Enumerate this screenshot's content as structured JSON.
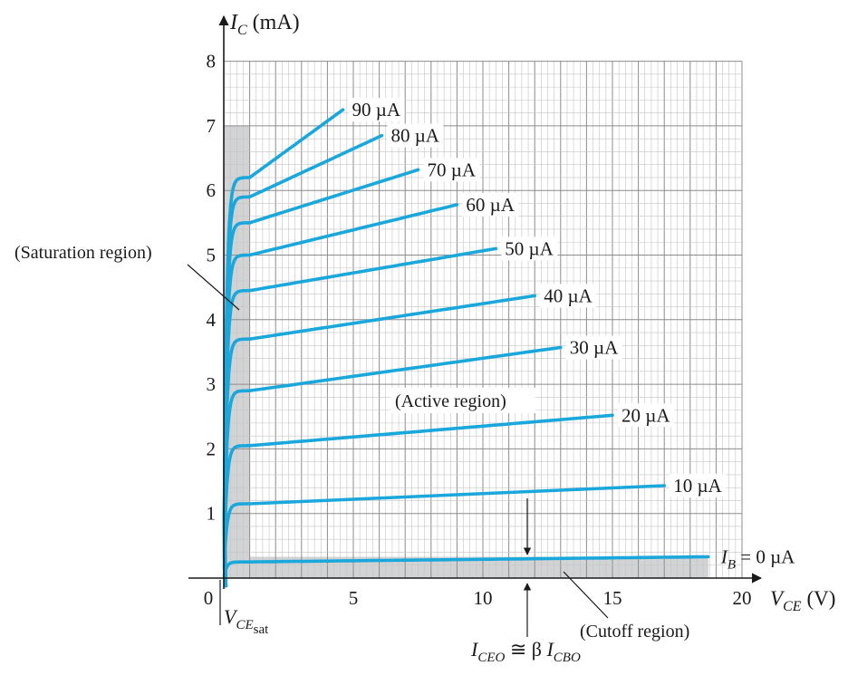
{
  "chart_data": {
    "type": "line",
    "title": "",
    "xlabel": {
      "var": "V",
      "sub": "CE",
      "unit": "(V)"
    },
    "ylabel": {
      "var": "I",
      "sub": "C",
      "unit": "(mA)"
    },
    "xlim": [
      0,
      20
    ],
    "ylim": [
      0,
      8
    ],
    "x_ticks": [
      5,
      10,
      15,
      20
    ],
    "y_ticks": [
      1,
      2,
      3,
      4,
      5,
      6,
      7,
      8
    ],
    "origin_label": "0",
    "grid": true,
    "series": [
      {
        "name": "I_B = 0 µA",
        "label": "",
        "label_parts": {
          "var": "I",
          "sub": "B",
          "rest": " = 0 µA"
        },
        "knee_y": 0.25,
        "end_x": 18.7,
        "end_y": 0.33
      },
      {
        "name": "10 µA",
        "label": "10 µA",
        "knee_y": 1.15,
        "end_x": 17.0,
        "end_y": 1.43
      },
      {
        "name": "20 µA",
        "label": "20 µA",
        "knee_y": 2.05,
        "end_x": 15.0,
        "end_y": 2.52
      },
      {
        "name": "30 µA",
        "label": "30 µA",
        "knee_y": 2.9,
        "end_x": 13.0,
        "end_y": 3.57
      },
      {
        "name": "40 µA",
        "label": "40 µA",
        "knee_y": 3.7,
        "end_x": 12.0,
        "end_y": 4.37
      },
      {
        "name": "50 µA",
        "label": "50 µA",
        "knee_y": 4.45,
        "end_x": 10.5,
        "end_y": 5.1
      },
      {
        "name": "60 µA",
        "label": "60 µA",
        "knee_y": 5.0,
        "end_x": 9.0,
        "end_y": 5.78
      },
      {
        "name": "70 µA",
        "label": "70 µA",
        "knee_y": 5.5,
        "end_x": 7.5,
        "end_y": 6.32
      },
      {
        "name": "80 µA",
        "label": "80 µA",
        "knee_y": 5.9,
        "end_x": 6.1,
        "end_y": 6.85
      },
      {
        "name": "90 µA",
        "label": "90 µA",
        "knee_y": 6.2,
        "end_x": 4.6,
        "end_y": 7.25
      }
    ],
    "regions": {
      "saturation": {
        "label": "(Saturation region)",
        "x_max": 1.0,
        "y_max": 7.0
      },
      "active": {
        "label": "(Active region)"
      },
      "cutoff": {
        "label": "(Cutoff region)",
        "x_max": 18.7,
        "y_max": 0.33
      }
    },
    "annotations": {
      "vce_sat": {
        "var": "V",
        "sub": "CE",
        "subsub": "sat"
      },
      "iceo": {
        "lhs": "I",
        "lhs_sub": "CEO",
        "op": " ≅ β ",
        "rhs": "I",
        "rhs_sub": "CBO"
      }
    },
    "colors": {
      "curve": "#1aa7dc",
      "grid_major": "#8c8c8c",
      "grid_minor": "#c4c4c4",
      "region_fill": "#d2d3d5",
      "axis": "#1a1a1a"
    }
  }
}
